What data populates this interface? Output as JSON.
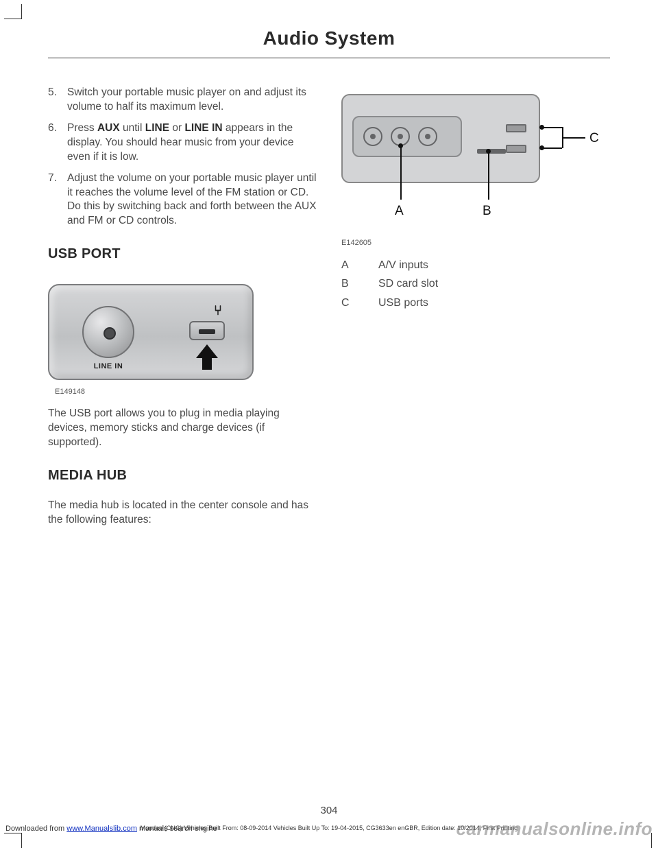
{
  "header": {
    "title": "Audio System"
  },
  "left": {
    "steps": [
      {
        "n": "5.",
        "html": "Switch your portable music player on and adjust its volume to half its maximum level."
      },
      {
        "n": "6.",
        "html": "Press <b>AUX</b> until <b>LINE</b> or <b>LINE IN</b> appears in the display. You should hear music from your device even if it is low."
      },
      {
        "n": "7.",
        "html": "Adjust the volume on your portable music player until it reaches the volume level of the FM station or CD. Do this by switching back and forth between the AUX and FM or CD controls."
      }
    ],
    "usb_heading": "USB PORT",
    "usb_fig": {
      "line_in_label": "LINE IN",
      "code": "E149148",
      "colors": {
        "panel_border": "#7c7d7f",
        "panel_bg_top": "#d5d6d8",
        "panel_bg_mid": "#bfc1c3"
      }
    },
    "usb_desc": "The USB port allows you to plug in media playing devices, memory sticks and charge devices (if supported).",
    "media_heading": "MEDIA HUB",
    "media_desc": "The media hub is located in the center console and has the following features:"
  },
  "right": {
    "hub_fig": {
      "code": "E142605",
      "callouts": {
        "A": "A",
        "B": "B",
        "C": "C"
      },
      "colors": {
        "panel": "#d3d4d6",
        "inner": "#bfc1c3",
        "stroke": "#646567"
      }
    },
    "legend": [
      {
        "key": "A",
        "label": "A/V inputs"
      },
      {
        "key": "B",
        "label": "SD card slot"
      },
      {
        "key": "C",
        "label": "USB ports"
      }
    ]
  },
  "footer": {
    "page": "304",
    "meta": "Mondeo (CNG) Vehicles Built From: 08-09-2014 Vehicles Built Up To: 19-04-2015, CG3633en enGBR, Edition date: 10/2014, First Printing",
    "downloaded_pre": "Downloaded from ",
    "downloaded_link": "www.Manualslib.com",
    "downloaded_post": " manuals search engine",
    "watermark": "carmanualsonline.info"
  }
}
